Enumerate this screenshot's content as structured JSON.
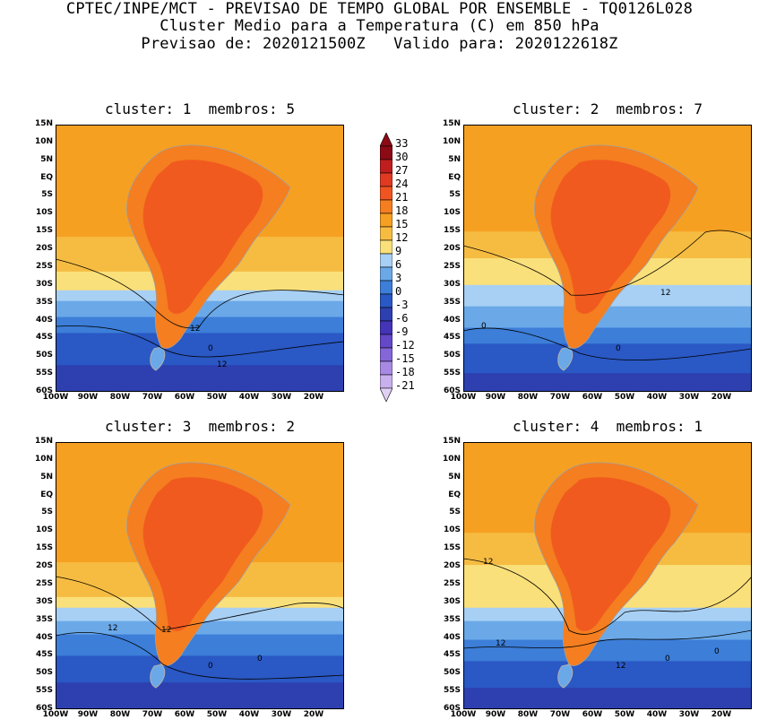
{
  "header": {
    "line1": "CPTEC/INPE/MCT - PREVISAO DE TEMPO GLOBAL POR ENSEMBLE - TQ0126L028",
    "line2": "Cluster Medio para a Temperatura (C) em 850 hPa",
    "line3": "Previsao de: 2020121500Z   Valido para: 2020122618Z"
  },
  "panels": [
    {
      "title": "cluster: 1  membros: 5",
      "contour_labels": [
        "12",
        "12",
        "0"
      ]
    },
    {
      "title": "cluster: 2  membros: 7",
      "contour_labels": [
        "12",
        "0",
        "0"
      ]
    },
    {
      "title": "cluster: 3  membros: 2",
      "contour_labels": [
        "12",
        "12",
        "0",
        "0"
      ]
    },
    {
      "title": "cluster: 4  membros: 1",
      "contour_labels": [
        "12",
        "12",
        "12",
        "0",
        "0"
      ]
    }
  ],
  "lat_labels": [
    "15N",
    "10N",
    "5N",
    "EQ",
    "5S",
    "10S",
    "15S",
    "20S",
    "25S",
    "30S",
    "35S",
    "40S",
    "45S",
    "50S",
    "55S",
    "60S"
  ],
  "lon_labels": [
    "100W",
    "90W",
    "80W",
    "70W",
    "60W",
    "50W",
    "40W",
    "30W",
    "20W"
  ],
  "colorbar": {
    "labels": [
      "33",
      "30",
      "27",
      "24",
      "21",
      "18",
      "15",
      "12",
      "9",
      "6",
      "3",
      "0",
      "-3",
      "-6",
      "-9",
      "-12",
      "-15",
      "-18",
      "-21"
    ],
    "colors": [
      "#8b0a14",
      "#c01e1e",
      "#e03a22",
      "#f05420",
      "#f47e20",
      "#f6a022",
      "#f6bc42",
      "#fae07a",
      "#a8d0f4",
      "#6aa8e8",
      "#3c7ed8",
      "#2a58c4",
      "#2e40b0",
      "#4434b8",
      "#6448c8",
      "#8466d8",
      "#a88ae4",
      "#c8b0ee",
      "#e0d0f6"
    ]
  }
}
